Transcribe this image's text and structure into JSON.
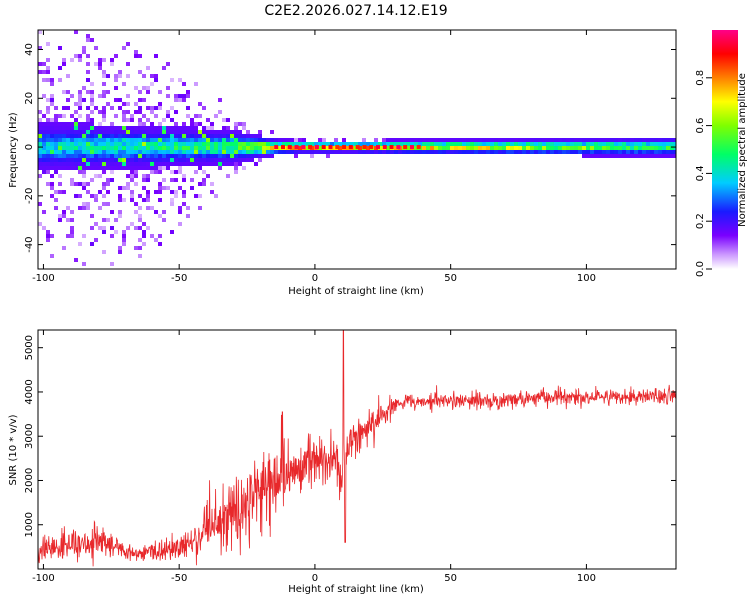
{
  "figure_title": "C2E2.2026.027.14.12.E19",
  "colors": {
    "snr_line": "#e8282b",
    "background": "#ffffff",
    "axis": "#000000"
  },
  "chart_data": [
    {
      "type": "heatmap",
      "xlabel": "Height of straight line (km)",
      "ylabel": "Frequency (Hz)",
      "xlim": [
        -102,
        133
      ],
      "ylim": [
        -50,
        48
      ],
      "xticks": [
        -100,
        -50,
        0,
        50,
        100
      ],
      "yticks": [
        -40,
        -20,
        0,
        20,
        40
      ],
      "colorbar": {
        "label": "Normalized spectral amplitude",
        "range": [
          0,
          1
        ],
        "ticks": [
          "0.0",
          "0.2",
          "0.4",
          "0.6",
          "0.8"
        ],
        "colormap": "rainbow (violet-blue-cyan-green-yellow-red-magenta)"
      },
      "description_points": [
        {
          "height_km": -100,
          "band_halfwidth_hz": 10,
          "scatter_halfwidth_hz": 48,
          "peak_amplitude": 0.45
        },
        {
          "height_km": -65,
          "band_halfwidth_hz": 9,
          "scatter_halfwidth_hz": 48,
          "peak_amplitude": 0.5
        },
        {
          "height_km": -30,
          "band_halfwidth_hz": 7,
          "scatter_halfwidth_hz": 15,
          "peak_amplitude": 0.6
        },
        {
          "height_km": -12,
          "band_halfwidth_hz": 3,
          "scatter_halfwidth_hz": 5,
          "peak_amplitude": 0.95
        },
        {
          "height_km": 10,
          "band_halfwidth_hz": 2.5,
          "scatter_halfwidth_hz": 4,
          "peak_amplitude": 0.95
        },
        {
          "height_km": 30,
          "band_halfwidth_hz": 3,
          "scatter_halfwidth_hz": 3,
          "peak_amplitude": 0.9
        },
        {
          "height_km": 133,
          "band_halfwidth_hz": 4,
          "scatter_halfwidth_hz": 4,
          "peak_amplitude": 0.6
        }
      ]
    },
    {
      "type": "line",
      "xlabel": "Height of straight line (km)",
      "ylabel": "SNR (10 * v/v)",
      "xlim": [
        -102,
        133
      ],
      "ylim": [
        0,
        5400
      ],
      "xticks": [
        -100,
        -50,
        0,
        50,
        100
      ],
      "yticks": [
        1000,
        2000,
        3000,
        4000,
        5000
      ],
      "series": [
        {
          "name": "SNR",
          "x": [
            -102,
            -95,
            -90,
            -85,
            -80,
            -75,
            -70,
            -65,
            -60,
            -55,
            -50,
            -45,
            -40,
            -35,
            -30,
            -25,
            -20,
            -15,
            -12,
            -10,
            -5,
            0,
            3,
            5,
            8,
            10,
            11,
            12,
            15,
            20,
            25,
            30,
            40,
            50,
            60,
            70,
            80,
            90,
            100,
            110,
            120,
            133
          ],
          "mean": [
            400,
            500,
            550,
            580,
            600,
            550,
            380,
            350,
            380,
            420,
            500,
            620,
            800,
            1000,
            1250,
            1500,
            1750,
            1900,
            2000,
            2150,
            2300,
            2500,
            2450,
            2450,
            2400,
            1700,
            2800,
            2800,
            2950,
            3250,
            3500,
            3750,
            3800,
            3800,
            3800,
            3800,
            3850,
            3900,
            3850,
            3900,
            3900,
            3900
          ],
          "noise": [
            250,
            350,
            350,
            350,
            350,
            300,
            150,
            150,
            200,
            250,
            300,
            400,
            500,
            650,
            700,
            750,
            800,
            800,
            700,
            550,
            500,
            500,
            450,
            450,
            600,
            600,
            400,
            400,
            400,
            380,
            330,
            200,
            170,
            170,
            170,
            170,
            170,
            170,
            170,
            170,
            170,
            170
          ],
          "spikes": [
            {
              "x": 10.5,
              "y": 5400
            },
            {
              "x": 11.2,
              "y": 600
            },
            {
              "x": -12,
              "y": 3550
            }
          ]
        }
      ]
    }
  ]
}
